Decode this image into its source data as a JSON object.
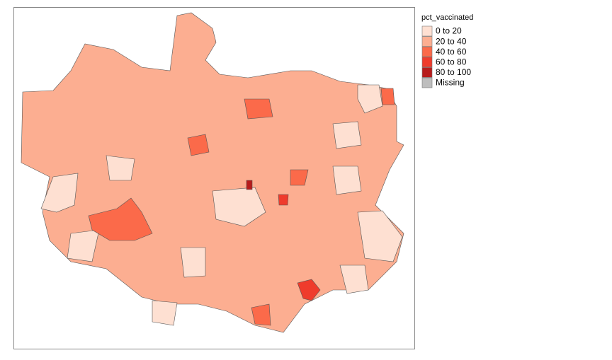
{
  "legend": {
    "title": "pct_vaccinated",
    "items": [
      {
        "label": "0 to 20",
        "color": "#fee0d2"
      },
      {
        "label": "20 to 40",
        "color": "#fcae91"
      },
      {
        "label": "40 to 60",
        "color": "#fb6a4a"
      },
      {
        "label": "60 to 80",
        "color": "#ef3b2c"
      },
      {
        "label": "80 to 100",
        "color": "#b71c1c"
      },
      {
        "label": "Missing",
        "color": "#bebebe"
      }
    ]
  }
}
